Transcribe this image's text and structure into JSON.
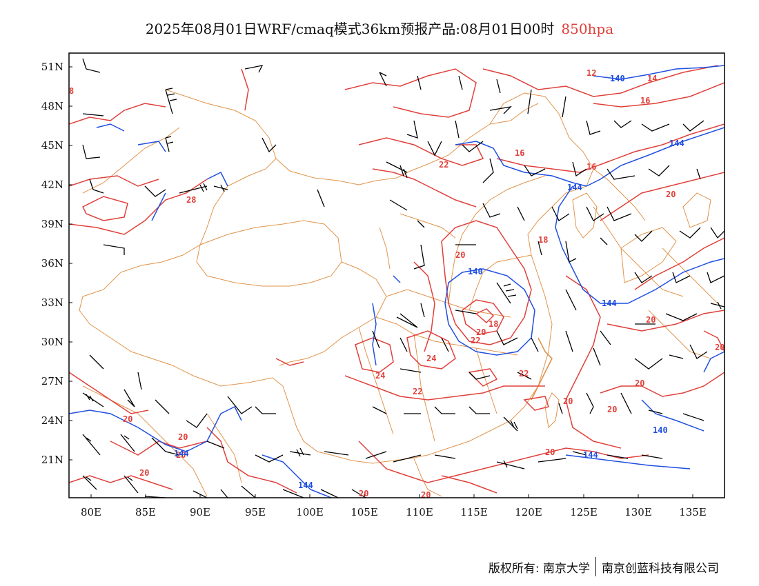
{
  "title": {
    "main": "2025年08月01日WRF/cmaq模式36km预报产品:08月01日00时",
    "level": "850hpa"
  },
  "colors": {
    "temperature": "#e0403a",
    "geopotential": "#1f4fe0",
    "border": "#e0934a",
    "wind": "#000000"
  },
  "axes": {
    "lat_ticks": [
      "51N",
      "48N",
      "45N",
      "42N",
      "39N",
      "36N",
      "33N",
      "30N",
      "27N",
      "24N",
      "21N"
    ],
    "lon_ticks": [
      "80E",
      "85E",
      "90E",
      "95E",
      "100E",
      "105E",
      "110E",
      "115E",
      "120E",
      "125E",
      "130E",
      "135E"
    ]
  },
  "contour_labels": {
    "temperature": [
      "8",
      "12",
      "14",
      "16",
      "16",
      "18",
      "16",
      "20",
      "22",
      "28",
      "20",
      "18",
      "20",
      "22",
      "24",
      "24",
      "22",
      "22",
      "20",
      "20",
      "20",
      "20",
      "20",
      "20",
      "20",
      "20",
      "20",
      "20",
      "20",
      "20"
    ],
    "geopotential": [
      "140",
      "144",
      "144",
      "144",
      "140",
      "144",
      "144",
      "144",
      "140"
    ]
  },
  "footer": {
    "left": "版权所有: 南京大学",
    "right": "南京创蓝科技有限公司"
  }
}
